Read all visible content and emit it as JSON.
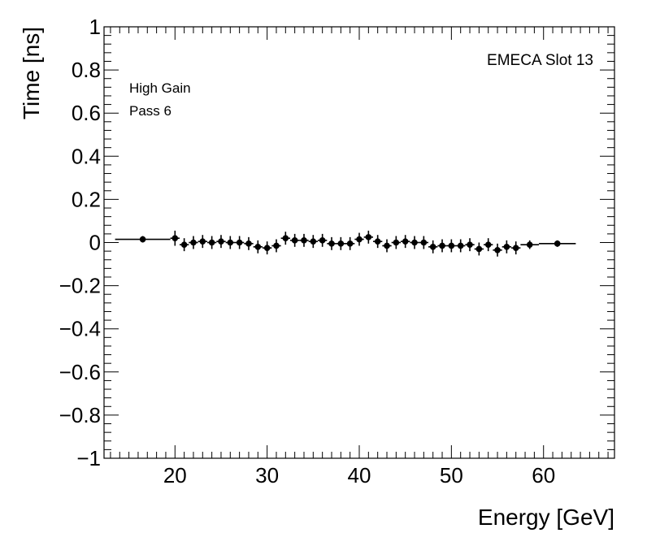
{
  "chart_data": {
    "type": "scatter",
    "title": "",
    "xlabel": "Energy [GeV]",
    "ylabel": "Time [ns]",
    "xlim": [
      12.3,
      67.7
    ],
    "ylim": [
      -1,
      1
    ],
    "x_ticks": [
      20,
      30,
      40,
      50,
      60
    ],
    "x_tick_labels": [
      "20",
      "30",
      "40",
      "50",
      "60"
    ],
    "y_ticks": [
      -1,
      -0.8,
      -0.6,
      -0.4,
      -0.2,
      0,
      0.2,
      0.4,
      0.6,
      0.8,
      1
    ],
    "y_tick_labels": [
      "−1",
      "−0.8",
      "−0.6",
      "−0.4",
      "−0.2",
      "0",
      "0.2",
      "0.4",
      "0.6",
      "0.8",
      "1"
    ],
    "grid": false,
    "annotations": {
      "slot": "EMECA Slot 13",
      "gain": "High Gain",
      "pass": "Pass 6"
    },
    "points": [
      {
        "x": 16.5,
        "y": 0.015,
        "xerr": 3.0,
        "yerr": 0.015
      },
      {
        "x": 20,
        "y": 0.02,
        "xerr": 0.5,
        "yerr": 0.035
      },
      {
        "x": 21,
        "y": -0.01,
        "xerr": 0.5,
        "yerr": 0.03
      },
      {
        "x": 22,
        "y": 0.0,
        "xerr": 0.5,
        "yerr": 0.03
      },
      {
        "x": 23,
        "y": 0.005,
        "xerr": 0.5,
        "yerr": 0.03
      },
      {
        "x": 24,
        "y": 0.0,
        "xerr": 0.5,
        "yerr": 0.03
      },
      {
        "x": 25,
        "y": 0.005,
        "xerr": 0.5,
        "yerr": 0.03
      },
      {
        "x": 26,
        "y": 0.0,
        "xerr": 0.5,
        "yerr": 0.03
      },
      {
        "x": 27,
        "y": 0.0,
        "xerr": 0.5,
        "yerr": 0.03
      },
      {
        "x": 28,
        "y": -0.005,
        "xerr": 0.5,
        "yerr": 0.03
      },
      {
        "x": 29,
        "y": -0.02,
        "xerr": 0.5,
        "yerr": 0.03
      },
      {
        "x": 30,
        "y": -0.025,
        "xerr": 0.5,
        "yerr": 0.03
      },
      {
        "x": 31,
        "y": -0.015,
        "xerr": 0.5,
        "yerr": 0.03
      },
      {
        "x": 32,
        "y": 0.02,
        "xerr": 0.5,
        "yerr": 0.03
      },
      {
        "x": 33,
        "y": 0.01,
        "xerr": 0.5,
        "yerr": 0.03
      },
      {
        "x": 34,
        "y": 0.01,
        "xerr": 0.5,
        "yerr": 0.03
      },
      {
        "x": 35,
        "y": 0.005,
        "xerr": 0.5,
        "yerr": 0.03
      },
      {
        "x": 36,
        "y": 0.01,
        "xerr": 0.5,
        "yerr": 0.03
      },
      {
        "x": 37,
        "y": -0.005,
        "xerr": 0.5,
        "yerr": 0.03
      },
      {
        "x": 38,
        "y": -0.005,
        "xerr": 0.5,
        "yerr": 0.03
      },
      {
        "x": 39,
        "y": -0.005,
        "xerr": 0.5,
        "yerr": 0.03
      },
      {
        "x": 40,
        "y": 0.015,
        "xerr": 0.5,
        "yerr": 0.03
      },
      {
        "x": 41,
        "y": 0.025,
        "xerr": 0.5,
        "yerr": 0.03
      },
      {
        "x": 42,
        "y": 0.005,
        "xerr": 0.5,
        "yerr": 0.03
      },
      {
        "x": 43,
        "y": -0.015,
        "xerr": 0.5,
        "yerr": 0.03
      },
      {
        "x": 44,
        "y": 0.0,
        "xerr": 0.5,
        "yerr": 0.03
      },
      {
        "x": 45,
        "y": 0.005,
        "xerr": 0.5,
        "yerr": 0.03
      },
      {
        "x": 46,
        "y": 0.0,
        "xerr": 0.5,
        "yerr": 0.03
      },
      {
        "x": 47,
        "y": 0.0,
        "xerr": 0.5,
        "yerr": 0.03
      },
      {
        "x": 48,
        "y": -0.02,
        "xerr": 0.5,
        "yerr": 0.03
      },
      {
        "x": 49,
        "y": -0.015,
        "xerr": 0.5,
        "yerr": 0.03
      },
      {
        "x": 50,
        "y": -0.015,
        "xerr": 0.5,
        "yerr": 0.03
      },
      {
        "x": 51,
        "y": -0.015,
        "xerr": 0.5,
        "yerr": 0.03
      },
      {
        "x": 52,
        "y": -0.01,
        "xerr": 0.5,
        "yerr": 0.03
      },
      {
        "x": 53,
        "y": -0.03,
        "xerr": 0.5,
        "yerr": 0.03
      },
      {
        "x": 54,
        "y": -0.01,
        "xerr": 0.5,
        "yerr": 0.03
      },
      {
        "x": 55,
        "y": -0.035,
        "xerr": 0.5,
        "yerr": 0.03
      },
      {
        "x": 56,
        "y": -0.02,
        "xerr": 0.5,
        "yerr": 0.03
      },
      {
        "x": 57,
        "y": -0.025,
        "xerr": 0.5,
        "yerr": 0.03
      },
      {
        "x": 58.5,
        "y": -0.01,
        "xerr": 1.0,
        "yerr": 0.02
      },
      {
        "x": 61.5,
        "y": -0.005,
        "xerr": 2.0,
        "yerr": 0.015
      }
    ]
  }
}
